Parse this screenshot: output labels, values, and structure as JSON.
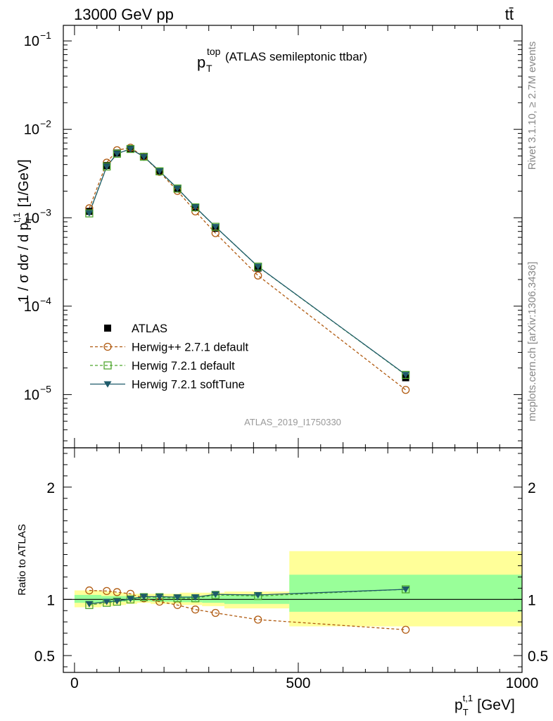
{
  "header": {
    "energy_label": "13000 GeV pp",
    "process_label": "tt̄"
  },
  "plot_title": {
    "main": "p",
    "sub": "T",
    "sup": "top",
    "rest": "(ATLAS semileptonic ttbar)"
  },
  "side_labels": {
    "rivet": "Rivet 3.1.10, ≥ 2.7M events",
    "mcplots": "mcplots.cern.ch [arXiv:1306.3436]"
  },
  "analysis_id": "ATLAS_2019_I1750330",
  "colors": {
    "data": "#000000",
    "herwigpp": "#b05a10",
    "herwig_default": "#4fa62e",
    "herwig_soft": "#1e5a6a",
    "band_yellow": "#ffff99",
    "band_green": "#99ff99"
  },
  "legend": [
    {
      "key": "data",
      "label": "ATLAS"
    },
    {
      "key": "herwigpp",
      "label": "Herwig++ 2.7.1 default"
    },
    {
      "key": "herwig_default",
      "label": "Herwig 7.2.1 default"
    },
    {
      "key": "herwig_soft",
      "label": "Herwig 7.2.1 softTune"
    }
  ],
  "chart_data": {
    "type": "line",
    "title": "p_T^top (ATLAS semileptonic ttbar)",
    "xlabel": "p_T^{t,1} [GeV]",
    "ylabel": "1 / σ dσ / d p_T^{t,1} [1/GeV]",
    "ratio_ylabel": "Ratio to ATLAS",
    "xlim": [
      -25,
      1000
    ],
    "ylim": [
      2.5e-06,
      0.15
    ],
    "ratio_ylim": [
      0.35,
      2.35
    ],
    "main_yticks": [
      {
        "value": 0.1,
        "base": "10",
        "exp": "−1"
      },
      {
        "value": 0.01,
        "base": "10",
        "exp": "−2"
      },
      {
        "value": 0.001,
        "base": "10",
        "exp": "−3"
      },
      {
        "value": 0.0001,
        "base": "10",
        "exp": "−4"
      },
      {
        "value": 1e-05,
        "base": "10",
        "exp": "−5"
      }
    ],
    "ratio_yticks": [
      {
        "value": 2,
        "label": "2"
      },
      {
        "value": 1,
        "label": "1"
      },
      {
        "value": 0.5,
        "label": "0.5"
      }
    ],
    "xticks": [
      {
        "value": 0,
        "label": "0"
      },
      {
        "value": 500,
        "label": "500"
      },
      {
        "value": 1000,
        "label": "1000"
      }
    ],
    "bins": [
      [
        0,
        60
      ],
      [
        60,
        90
      ],
      [
        90,
        115
      ],
      [
        115,
        140
      ],
      [
        140,
        170
      ],
      [
        170,
        200
      ],
      [
        200,
        235
      ],
      [
        235,
        285
      ],
      [
        285,
        335
      ],
      [
        335,
        480
      ],
      [
        480,
        1000
      ]
    ],
    "x": [
      33,
      72,
      95,
      125,
      155,
      190,
      230,
      270,
      315,
      410,
      740
    ],
    "series": [
      {
        "name": "ATLAS",
        "key": "data",
        "values": [
          0.00118,
          0.0039,
          0.0054,
          0.006,
          0.0049,
          0.00335,
          0.00212,
          0.0013,
          0.00076,
          0.00027,
          1.55e-05
        ]
      },
      {
        "name": "Herwig++ 2.7.1 default",
        "key": "herwigpp",
        "values": [
          0.00128,
          0.0042,
          0.0058,
          0.0062,
          0.0049,
          0.0033,
          0.00201,
          0.00118,
          0.00067,
          0.000222,
          1.13e-05
        ]
      },
      {
        "name": "Herwig 7.2.1 default",
        "key": "herwig_default",
        "values": [
          0.00112,
          0.0038,
          0.0053,
          0.006,
          0.0049,
          0.00335,
          0.00214,
          0.00131,
          0.00079,
          0.00028,
          1.67e-05
        ]
      },
      {
        "name": "Herwig 7.2.1 softTune",
        "key": "herwig_soft",
        "values": [
          0.00113,
          0.0038,
          0.0053,
          0.006,
          0.0049,
          0.00337,
          0.00215,
          0.00132,
          0.00079,
          0.000281,
          1.68e-05
        ]
      }
    ],
    "ratios": [
      {
        "key": "herwigpp",
        "values": [
          1.08,
          1.075,
          1.065,
          1.05,
          1.01,
          0.98,
          0.95,
          0.91,
          0.88,
          0.82,
          0.73
        ]
      },
      {
        "key": "herwig_default",
        "values": [
          0.95,
          0.97,
          0.98,
          1.0,
          1.02,
          1.02,
          1.01,
          1.01,
          1.04,
          1.03,
          1.09
        ]
      },
      {
        "key": "herwig_soft",
        "values": [
          0.96,
          0.98,
          0.985,
          1.005,
          1.025,
          1.025,
          1.02,
          1.02,
          1.045,
          1.04,
          1.09
        ]
      }
    ],
    "uncertainty_bands": {
      "total": [
        [
          0.93,
          1.08
        ],
        [
          0.94,
          1.07
        ],
        [
          0.95,
          1.06
        ],
        [
          0.96,
          1.05
        ],
        [
          0.97,
          1.05
        ],
        [
          0.96,
          1.05
        ],
        [
          0.96,
          1.05
        ],
        [
          0.95,
          1.06
        ],
        [
          0.94,
          1.06
        ],
        [
          0.92,
          1.07
        ],
        [
          0.76,
          1.43
        ]
      ],
      "stat": [
        [
          0.97,
          1.04
        ],
        [
          0.975,
          1.03
        ],
        [
          0.98,
          1.03
        ],
        [
          0.985,
          1.02
        ],
        [
          0.985,
          1.02
        ],
        [
          0.98,
          1.02
        ],
        [
          0.98,
          1.025
        ],
        [
          0.975,
          1.03
        ],
        [
          0.97,
          1.035
        ],
        [
          0.96,
          1.04
        ],
        [
          0.89,
          1.22
        ]
      ]
    }
  }
}
